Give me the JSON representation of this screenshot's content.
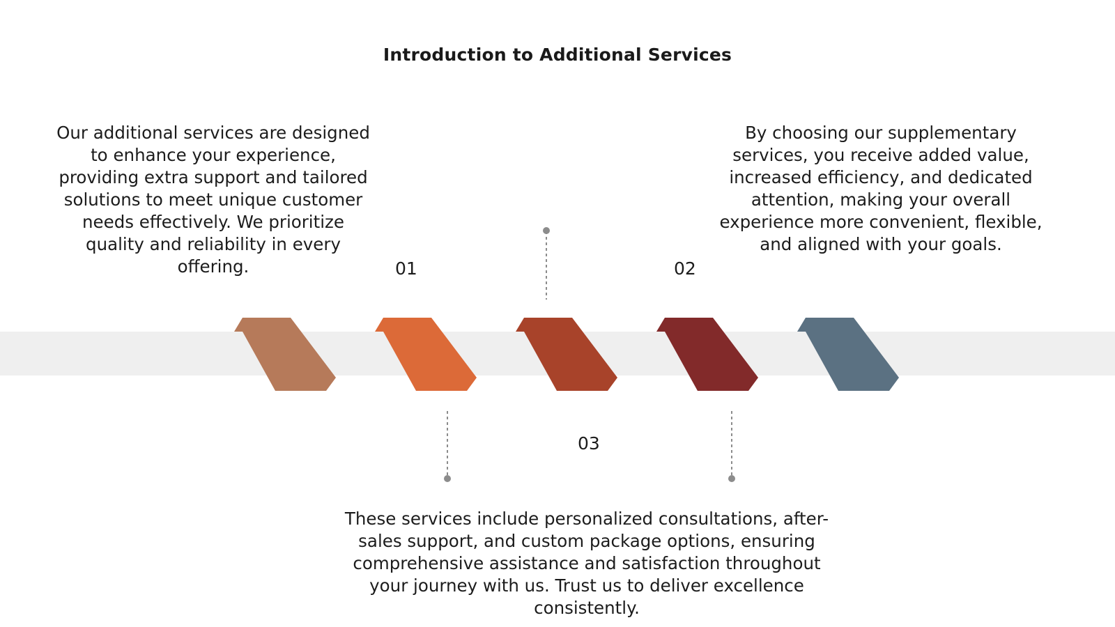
{
  "title": "Introduction to Additional Services",
  "steps": [
    {
      "number": "01",
      "text": "Our additional services are designed to enhance your experience, providing extra support and tailored solutions to meet unique customer needs effectively. We prioritize quality and reliability in every offering."
    },
    {
      "number": "02",
      "text": "By choosing our supplementary services, you receive added value, increased efficiency, and dedicated attention, making your overall experience more convenient, flexible, and aligned with your goals."
    },
    {
      "number": "03",
      "text": "These services include personalized consultations, after-sales support, and custom package options, ensuring comprehensive assistance and satisfaction throughout your journey with us. Trust us to deliver excellence consistently."
    }
  ],
  "colors": {
    "band": "#efefef",
    "connector": "#8c8c8c",
    "arrow_1": "#b67a5a",
    "arrow_2": "#dc6a38",
    "arrow_3": "#a8432a",
    "arrow_4": "#822a2a",
    "arrow_5": "#5b7182"
  }
}
